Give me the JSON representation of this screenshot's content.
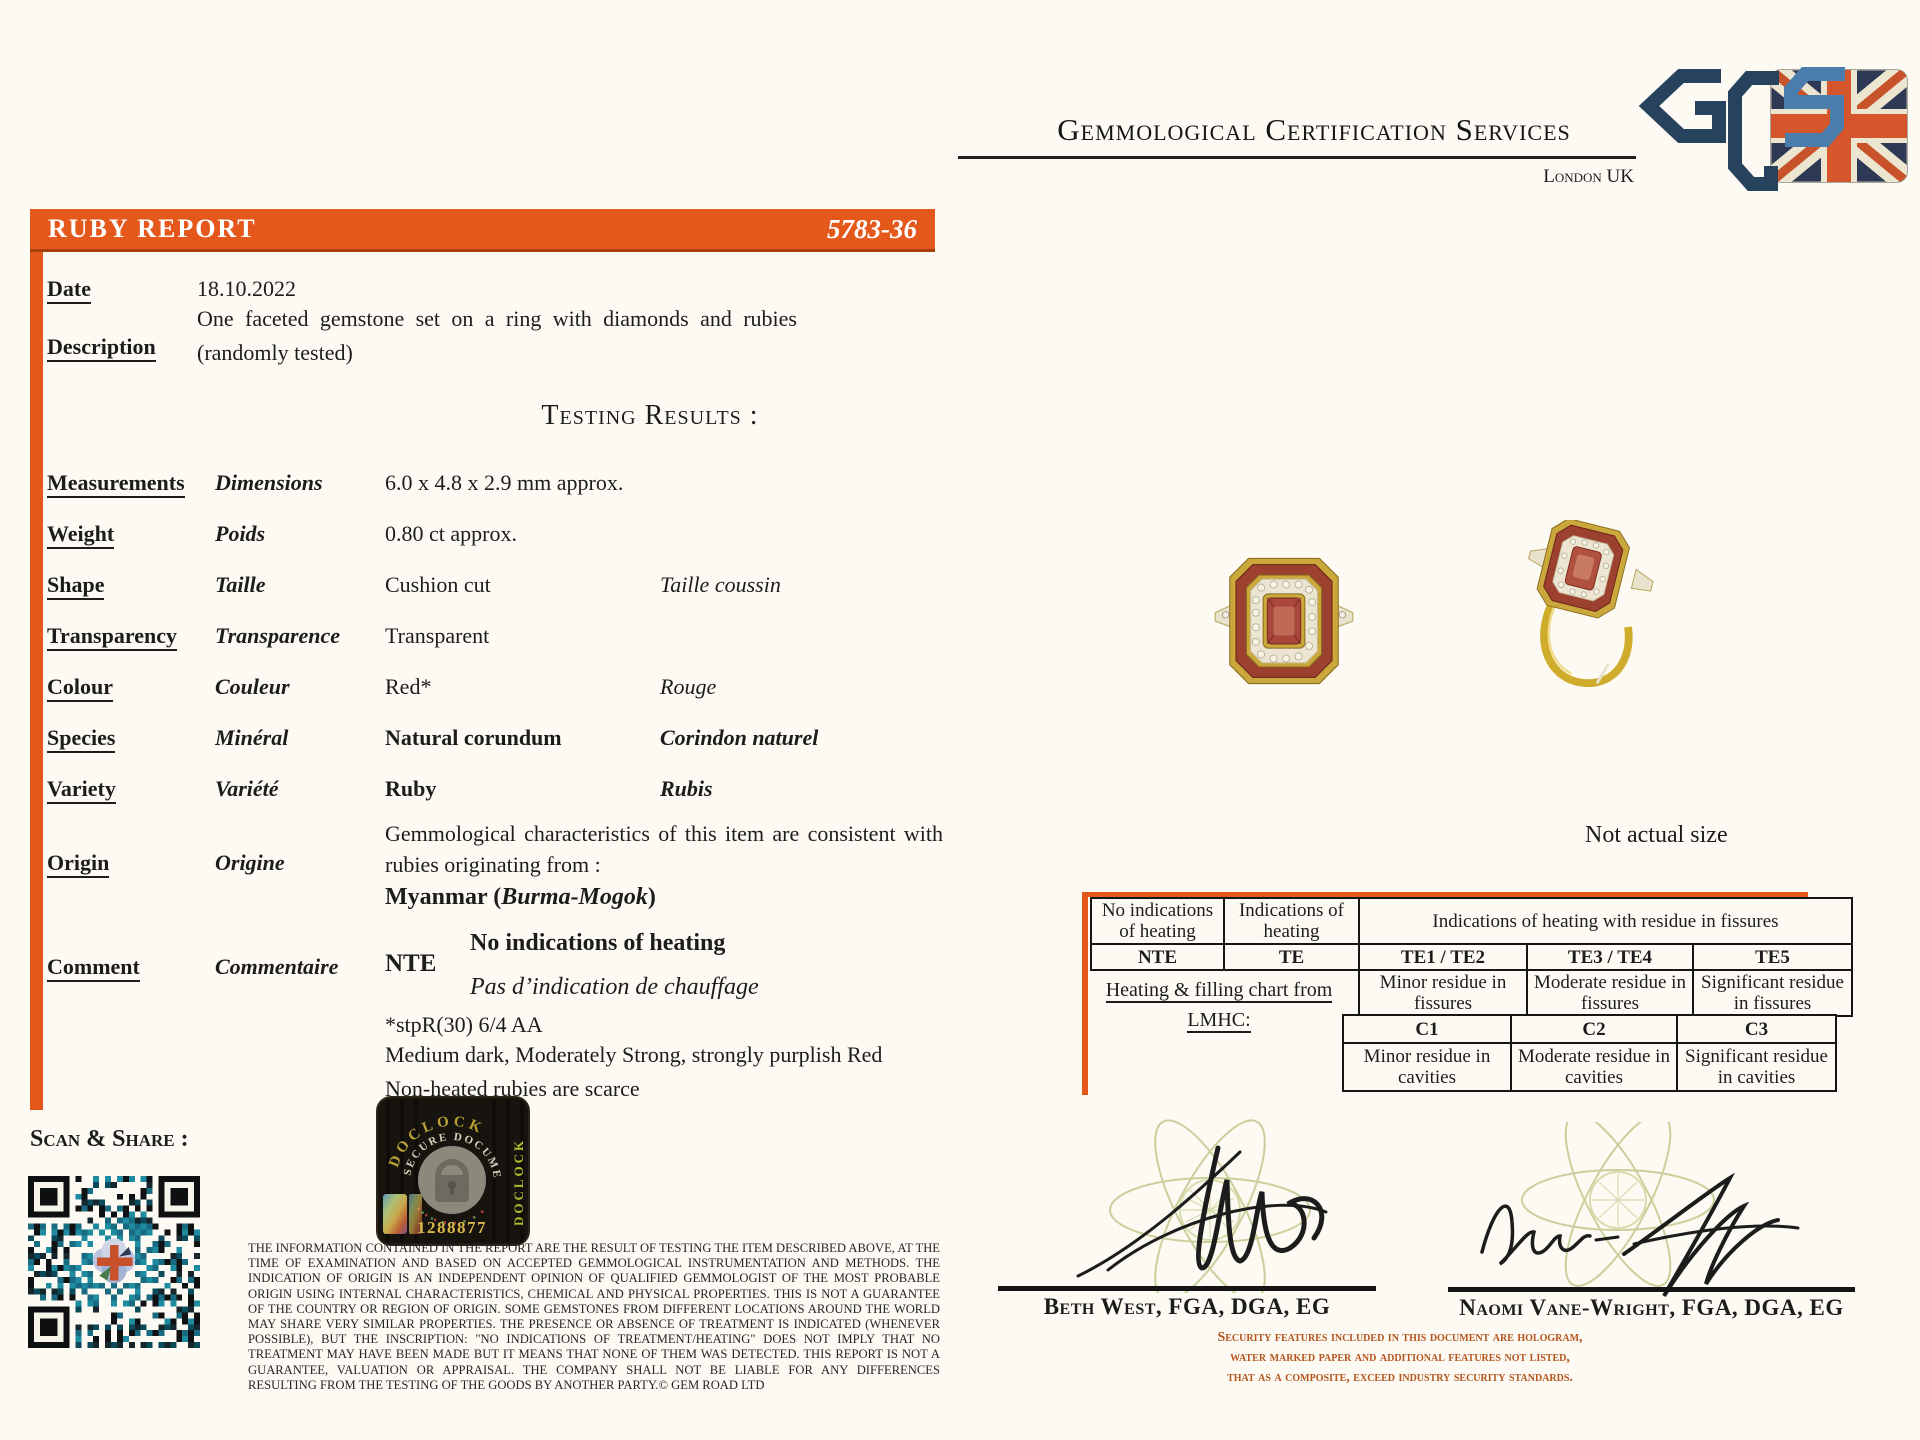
{
  "left_page": {
    "header": {
      "title": "RUBY REPORT",
      "number": "5783-36"
    },
    "date": {
      "label": "Date",
      "value": "18.10.2022"
    },
    "description": {
      "label": "Description",
      "value": "One faceted gemstone set on a ring with diamonds and rubies (randomly tested)"
    },
    "section_title": "Testing Results :",
    "rows": [
      {
        "label": "Measurements",
        "fr": "Dimensions",
        "value": "6.0 x 4.8 x 2.9 mm approx.",
        "fr_value": ""
      },
      {
        "label": "Weight",
        "fr": "Poids",
        "value": "0.80 ct approx.",
        "fr_value": ""
      },
      {
        "label": "Shape",
        "fr": "Taille",
        "value": "Cushion cut",
        "fr_value": "Taille coussin"
      },
      {
        "label": "Transparency",
        "fr": "Transparence",
        "value": "Transparent",
        "fr_value": ""
      },
      {
        "label": "Colour",
        "fr": "Couleur",
        "value": "Red*",
        "fr_value": "Rouge"
      },
      {
        "label": "Species",
        "fr": "Minéral",
        "value": "Natural corundum",
        "fr_value": "Corindon naturel"
      },
      {
        "label": "Variety",
        "fr": "Variété",
        "value": "Ruby",
        "fr_value": "Rubis"
      }
    ],
    "origin": {
      "label": "Origin",
      "fr": "Origine",
      "text": "Gemmological characteristics of this item are consistent with rubies originating from :",
      "place_prefix": "Myanmar (",
      "place_italic": "Burma-Mogok",
      "place_suffix": ")"
    },
    "comment": {
      "label": "Comment",
      "fr": "Commentaire",
      "code": "NTE",
      "heading": "No indications of heating",
      "heading_fr": "Pas d’indication de chauffage",
      "grade": "*stpR(30) 6/4 AA",
      "colour_desc": "Medium dark, Moderately Strong, strongly purplish Red",
      "note": "Non-heated rubies are scarce"
    },
    "scan_share_label": "Scan & Share :",
    "hologram": {
      "brand_arc": "DOCLOCK",
      "arc_text": "SECURE DOCUMENT",
      "number": "1288877",
      "side_text": "DOCLOCK"
    },
    "disclaimer": "THE INFORMATION CONTAINED IN THE REPORT ARE THE RESULT OF TESTING THE ITEM DESCRIBED ABOVE, AT THE TIME OF EXAMINATION AND BASED ON ACCEPTED GEMMOLOGICAL INSTRUMENTATION AND METHODS. THE INDICATION OF ORIGIN IS AN INDEPENDENT OPINION OF QUALIFIED GEMMOLOGIST OF THE MOST PROBABLE ORIGIN USING INTERNAL CHARACTERISTICS, CHEMICAL AND PHYSICAL PROPERTIES. THIS IS NOT A GUARANTEE OF THE COUNTRY OR REGION OF ORIGIN. SOME GEMSTONES FROM DIFFERENT LOCATIONS AROUND THE WORLD MAY SHARE VERY SIMILAR PROPERTIES. THE PRESENCE OR ABSENCE OF TREATMENT IS INDICATED (WHENEVER POSSIBLE), BUT THE INSCRIPTION: \"NO INDICATIONS OF TREATMENT/HEATING\" DOES NOT IMPLY THAT NO TREATMENT MAY HAVE BEEN MADE BUT IT MEANS THAT NONE OF THEM WAS DETECTED. THIS REPORT IS NOT A GUARANTEE, VALUATION OR APPRAISAL. THE COMPANY SHALL NOT BE LIABLE FOR ANY DIFFERENCES RESULTING FROM THE TESTING OF THE GOODS BY ANOTHER PARTY.© GEM ROAD LTD"
  },
  "right_page": {
    "org_name": "Gemmological Certification Services",
    "org_location": "London UK",
    "logo_monogram": "GCS",
    "not_actual_size": "Not actual size",
    "heating_chart": {
      "col_no_ind": "No indications of heating",
      "col_ind": "Indications of heating",
      "col_residue": "Indications of heating with residue in fissures",
      "nte": "NTE",
      "te": "TE",
      "te12": "TE1 / TE2",
      "te34": "TE3 / TE4",
      "te5": "TE5",
      "minor_fissures": "Minor residue in fissures",
      "moderate_fissures": "Moderate residue in fissures",
      "significant_fissures": "Significant residue in fissures",
      "c1": "C1",
      "c2": "C2",
      "c3": "C3",
      "minor_cavities": "Minor residue in cavities",
      "moderate_cavities": "Moderate residue in cavities",
      "significant_cavities": "Significant residue in cavities",
      "caption_line1": "Heating & filling chart from",
      "caption_line2": "LMHC:"
    },
    "signatures": {
      "left_name": "Beth West, FGA, DGA, EG",
      "right_name": "Naomi Vane-Wright, FGA, DGA, EG"
    },
    "security_note": [
      "Security features included in this document are hologram,",
      "water marked paper and additional features not listed,",
      "that as a composite, exceed industry security standards."
    ]
  },
  "colors": {
    "accent_orange": "#e5581c",
    "security_text": "#b5541d",
    "hologram_gold": "#c9a43c"
  }
}
